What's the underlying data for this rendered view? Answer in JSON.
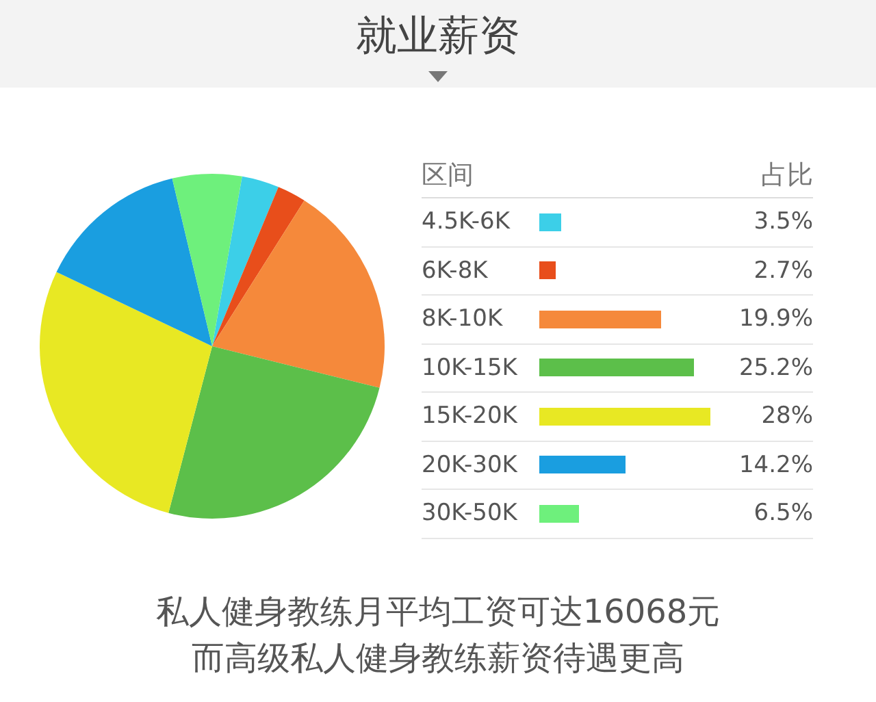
{
  "chart_data": {
    "type": "pie",
    "title": "就业薪资",
    "legend_title": "区间",
    "categories": [
      "4.5K-6K",
      "6K-8K",
      "8K-10K",
      "10K-15K",
      "15K-20K",
      "20K-30K",
      "30K-50K"
    ],
    "values": [
      3.5,
      2.7,
      19.9,
      25.2,
      28,
      14.2,
      6.5
    ],
    "colors": [
      "#3ccfe8",
      "#e84e1b",
      "#f5893b",
      "#5cbf4a",
      "#e8e823",
      "#1a9ee0",
      "#6ef07c"
    ],
    "value_labels": [
      "3.5%",
      "2.7%",
      "19.9%",
      "25.2%",
      "28%",
      "14.2%",
      "6.5%"
    ],
    "legend": "right",
    "annotations": [
      "占比",
      "私人健身教练月平均工资可达16068元",
      "而高级私人健身教练薪资待遇更高"
    ]
  }
}
